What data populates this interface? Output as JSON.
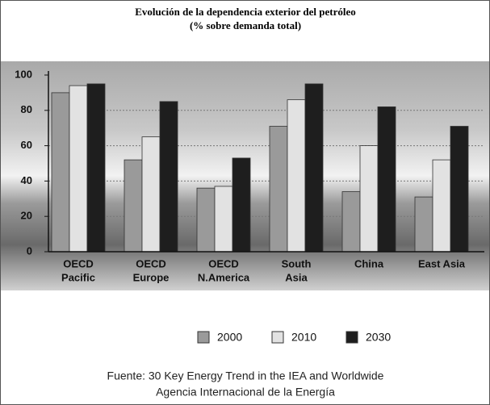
{
  "chart_data": {
    "type": "bar",
    "title": [
      "Evolución de la dependencia exterior del petróleo",
      "(% sobre demanda total)"
    ],
    "categories": [
      [
        "OECD",
        "Pacific"
      ],
      [
        "OECD",
        "Europe"
      ],
      [
        "OECD",
        "N.America"
      ],
      [
        "South",
        "Asia"
      ],
      [
        "China"
      ],
      [
        "East Asia"
      ]
    ],
    "series": [
      {
        "name": "2000",
        "color": "#9a9a9a",
        "values": [
          90,
          52,
          36,
          71,
          34,
          31
        ]
      },
      {
        "name": "2010",
        "color": "#e2e2e2",
        "values": [
          94,
          65,
          37,
          86,
          60,
          52
        ]
      },
      {
        "name": "2030",
        "color": "#1e1e1e",
        "values": [
          95,
          85,
          53,
          95,
          82,
          71
        ]
      }
    ],
    "ylim": [
      0,
      100
    ],
    "yticks": [
      0,
      20,
      40,
      60,
      80,
      100
    ],
    "grid": true,
    "source": [
      "Fuente: 30 Key Energy Trend in the IEA and Worldwide",
      "Agencia Internacional de la Energía"
    ]
  }
}
